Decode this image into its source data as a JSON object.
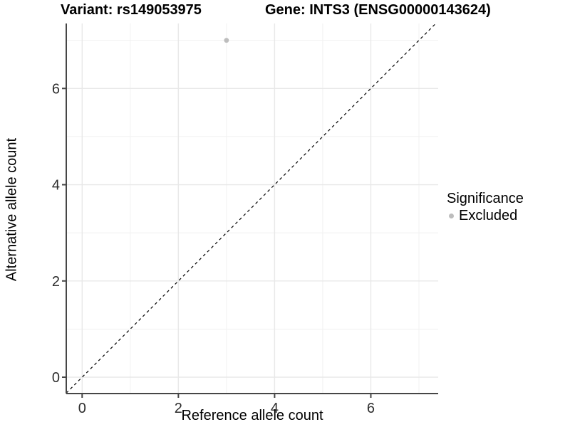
{
  "chart_data": {
    "type": "scatter",
    "title_left": "Variant: rs149053975",
    "title_right": "Gene: INTS3 (ENSG00000143624)",
    "xlabel": "Reference allele count",
    "ylabel": "Alternative allele count",
    "xlim": [
      -0.33,
      7.4
    ],
    "ylim": [
      -0.34,
      7.35
    ],
    "xticks": [
      0,
      2,
      4,
      6
    ],
    "yticks": [
      0,
      2,
      4,
      6
    ],
    "xminor": [
      1,
      3,
      5,
      7
    ],
    "yminor": [
      1,
      3,
      5,
      7
    ],
    "grid": true,
    "points": [
      {
        "x": 3,
        "y": 7,
        "significance": "Excluded"
      }
    ],
    "reference_line": {
      "type": "identity",
      "style": "dashed",
      "color": "#000000"
    },
    "legend": {
      "title": "Significance",
      "position": "right",
      "items": [
        {
          "label": "Excluded",
          "color": "#bdbdbd"
        }
      ]
    }
  },
  "colors": {
    "background": "#ffffff",
    "grid_major": "#e8e8e8",
    "grid_minor": "#f1f1f1",
    "axis_line": "#464646",
    "tick_mark": "#464646",
    "tick_text": "#2e2e2e",
    "point": "#bdbdbd",
    "dashed_line": "#000000"
  }
}
